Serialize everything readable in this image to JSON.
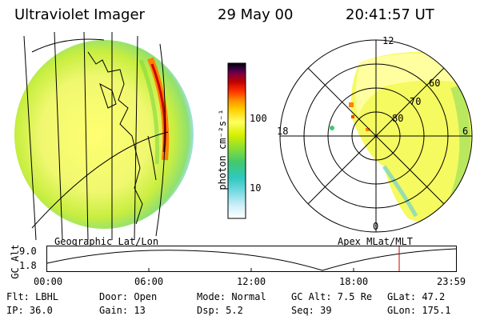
{
  "header": {
    "instrument": "Ultraviolet Imager",
    "date": "29 May 00",
    "time": "20:41:57 UT"
  },
  "colorbar": {
    "unit_label": "photon cm⁻²s⁻¹",
    "tick_100": "100",
    "tick_10": "10",
    "colors": [
      "#ffffff",
      "#d0f0f8",
      "#70d8e0",
      "#30c8c0",
      "#40c870",
      "#90e030",
      "#d8f000",
      "#ffff60",
      "#ffd000",
      "#ff9000",
      "#ff3000",
      "#c00000",
      "#800040",
      "#300040",
      "#000000"
    ]
  },
  "polar_plot": {
    "label_12": "12",
    "label_18": "18",
    "label_6": "6",
    "label_0": "0",
    "label_60": "60",
    "label_70": "70",
    "label_80": "80"
  },
  "timeline": {
    "left_label": "Geographic Lat/Lon",
    "right_label": "Apex MLat/MLT",
    "axis_name": "GC Alt",
    "y_top": "9.0",
    "y_bottom": "1.8",
    "x_labels": [
      "00:00",
      "06:00",
      "12:00",
      "18:00",
      "23:59"
    ],
    "marker_color": "#cc0000"
  },
  "info": {
    "flt": "Flt: LBHL",
    "ip": "IP: 36.0",
    "door": "Door: Open",
    "gain": "Gain: 13",
    "mode": "Mode: Normal",
    "dsp": "Dsp:    5.2",
    "gcalt": "GC Alt: 7.5 Re",
    "seq": "Seq: 39",
    "glat": "GLat:  47.2",
    "glon": "GLon: 175.1"
  }
}
